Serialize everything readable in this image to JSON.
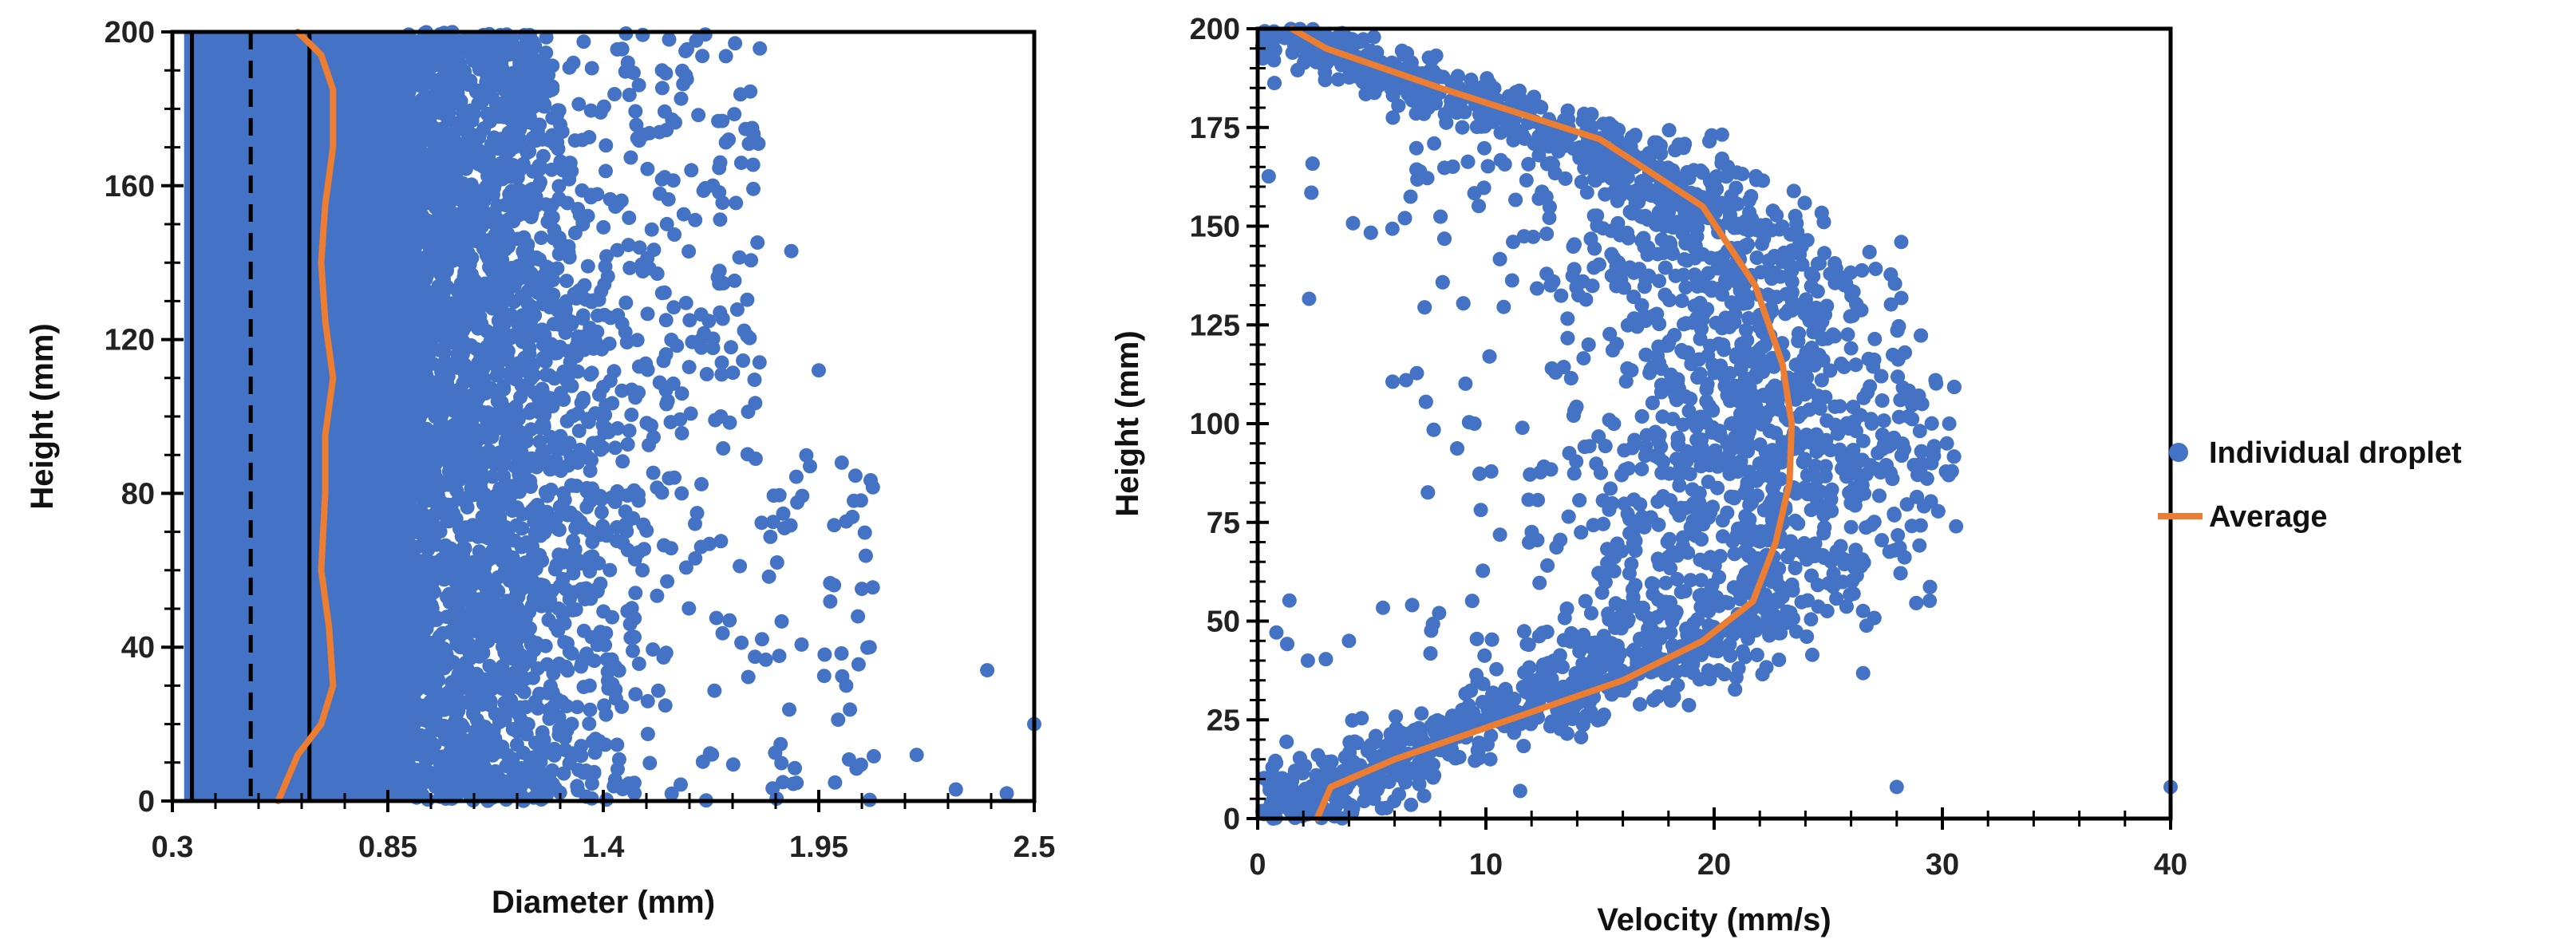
{
  "colors": {
    "points": "#4472C4",
    "average": "#ED7D31",
    "axis": "#000000"
  },
  "chart_data": [
    {
      "id": "diameter",
      "type": "scatter",
      "xlabel": "Diameter (mm)",
      "ylabel": "Height (mm)",
      "xlim": [
        0.3,
        2.5
      ],
      "ylim": [
        0,
        200
      ],
      "xticks": [
        "0.3",
        "0.85",
        "1.4",
        "1.95",
        "2.5"
      ],
      "yticks": [
        "0",
        "40",
        "80",
        "120",
        "160",
        "200"
      ],
      "reference_lines": [
        {
          "x": 0.35,
          "style": "solid"
        },
        {
          "x": 0.5,
          "style": "dashed"
        },
        {
          "x": 0.65,
          "style": "solid"
        }
      ],
      "average": {
        "name": "Average",
        "points": [
          [
            0.57,
            0
          ],
          [
            0.62,
            12
          ],
          [
            0.68,
            20
          ],
          [
            0.71,
            30
          ],
          [
            0.7,
            45
          ],
          [
            0.68,
            60
          ],
          [
            0.69,
            80
          ],
          [
            0.69,
            95
          ],
          [
            0.71,
            110
          ],
          [
            0.69,
            125
          ],
          [
            0.68,
            140
          ],
          [
            0.69,
            155
          ],
          [
            0.71,
            170
          ],
          [
            0.71,
            185
          ],
          [
            0.68,
            194
          ],
          [
            0.62,
            200
          ]
        ]
      },
      "sample_points": [
        [
          2.5,
          20
        ],
        [
          2.43,
          2
        ],
        [
          2.38,
          34
        ],
        [
          2.3,
          3
        ],
        [
          2.2,
          12
        ],
        [
          2.08,
          40
        ],
        [
          2.05,
          48
        ],
        [
          2.02,
          30
        ],
        [
          1.95,
          112
        ],
        [
          1.88,
          143
        ],
        [
          1.78,
          175
        ],
        [
          1.72,
          172
        ],
        [
          1.61,
          195
        ],
        [
          1.55,
          190
        ],
        [
          1.65,
          120
        ],
        [
          1.7,
          100
        ],
        [
          1.6,
          80
        ],
        [
          1.5,
          60
        ]
      ]
    },
    {
      "id": "velocity",
      "type": "scatter",
      "xlabel": "Velocity (mm/s)",
      "ylabel": "Height (mm)",
      "xlim": [
        0,
        40
      ],
      "ylim": [
        0,
        200
      ],
      "xticks": [
        "0",
        "10",
        "20",
        "30",
        "40"
      ],
      "yticks": [
        "0",
        "25",
        "50",
        "75",
        "100",
        "125",
        "150",
        "175",
        "200"
      ],
      "average": {
        "name": "Average",
        "points": [
          [
            2.6,
            0
          ],
          [
            3.2,
            8
          ],
          [
            6,
            15
          ],
          [
            11,
            25
          ],
          [
            16,
            35
          ],
          [
            19.5,
            45
          ],
          [
            21.7,
            55
          ],
          [
            22.7,
            70
          ],
          [
            23.3,
            85
          ],
          [
            23.4,
            100
          ],
          [
            23,
            115
          ],
          [
            21.8,
            135
          ],
          [
            19.5,
            155
          ],
          [
            15,
            172
          ],
          [
            8,
            185
          ],
          [
            3,
            195
          ],
          [
            1.5,
            200
          ]
        ]
      },
      "sample_points": [
        [
          40,
          8
        ],
        [
          28,
          8
        ],
        [
          28.2,
          146
        ],
        [
          30.2,
          95
        ],
        [
          30.3,
          100
        ],
        [
          29.7,
          111
        ],
        [
          30.6,
          74
        ],
        [
          7.2,
          15
        ],
        [
          11.5,
          7
        ],
        [
          6.5,
          111
        ],
        [
          9.5,
          100
        ],
        [
          2.2,
          40
        ],
        [
          4,
          45
        ]
      ]
    }
  ],
  "legend": [
    {
      "label": "Individual droplet",
      "kind": "marker"
    },
    {
      "label": "Average",
      "kind": "line"
    }
  ]
}
